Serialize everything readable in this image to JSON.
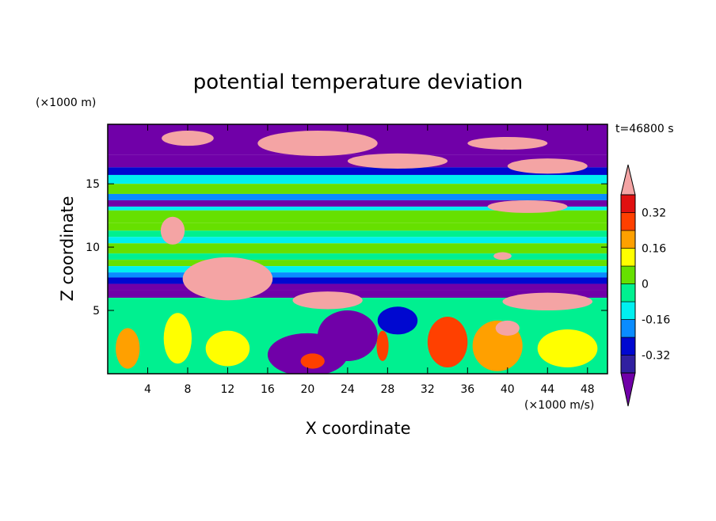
{
  "chart_data": {
    "type": "heatmap",
    "title": "potential temperature deviation",
    "xlabel": "X coordinate",
    "ylabel": "Z coordinate",
    "x_unit": "(×1000 m/s)",
    "y_unit": "(×1000 m)",
    "time_label": "t=46800 s",
    "xlim": [
      0,
      50
    ],
    "ylim": [
      0,
      19.7
    ],
    "x_ticks": [
      4,
      8,
      12,
      16,
      20,
      24,
      28,
      32,
      36,
      40,
      44,
      48
    ],
    "y_ticks": [
      5,
      10,
      15
    ],
    "colorbar": {
      "levels": [
        -0.4,
        -0.32,
        -0.24,
        -0.16,
        -0.08,
        0,
        0.08,
        0.16,
        0.24,
        0.32,
        0.4
      ],
      "labels": [
        "0.32",
        "0.16",
        "0",
        "-0.16",
        "-0.32"
      ],
      "label_values": [
        0.32,
        0.16,
        0,
        -0.16,
        -0.32
      ],
      "colors": [
        "#7000a8",
        "#3020a0",
        "#0008d0",
        "#0a8cff",
        "#00f0f0",
        "#00f090",
        "#66e000",
        "#ffff00",
        "#ffa000",
        "#ff4000",
        "#e01010",
        "#f4a4a4"
      ],
      "extend": "both"
    },
    "field_bands": [
      {
        "z": [
          19.7,
          17.3
        ],
        "value": -0.45
      },
      {
        "z": [
          17.3,
          16.3
        ],
        "value": -0.45
      },
      {
        "z": [
          16.3,
          15.7
        ],
        "value": -0.28
      },
      {
        "z": [
          15.7,
          15.0
        ],
        "value": -0.12
      },
      {
        "z": [
          15.0,
          14.2
        ],
        "value": 0.03
      },
      {
        "z": [
          14.2,
          13.7
        ],
        "value": -0.2
      },
      {
        "z": [
          13.7,
          13.2
        ],
        "value": -0.45
      },
      {
        "z": [
          13.2,
          12.9
        ],
        "value": -0.12
      },
      {
        "z": [
          12.9,
          11.9
        ],
        "value": 0.03
      },
      {
        "z": [
          11.9,
          11.3
        ],
        "value": 0.07
      },
      {
        "z": [
          11.3,
          10.8
        ],
        "value": -0.05
      },
      {
        "z": [
          10.8,
          10.3
        ],
        "value": -0.1
      },
      {
        "z": [
          10.3,
          9.5
        ],
        "value": 0.03
      },
      {
        "z": [
          9.5,
          9.0
        ],
        "value": -0.05
      },
      {
        "z": [
          9.0,
          8.5
        ],
        "value": 0.03
      },
      {
        "z": [
          8.5,
          8.0
        ],
        "value": -0.1
      },
      {
        "z": [
          8.0,
          7.6
        ],
        "value": -0.2
      },
      {
        "z": [
          7.6,
          7.1
        ],
        "value": -0.3
      },
      {
        "z": [
          7.1,
          6.6
        ],
        "value": -0.45
      },
      {
        "z": [
          6.6,
          6.0
        ],
        "value": -0.45
      },
      {
        "z": [
          6.0,
          0
        ],
        "value": -0.05
      }
    ],
    "field_blobs": [
      {
        "x": 8,
        "z": 18.6,
        "rx": 2.6,
        "rz": 0.6,
        "value": 0.45
      },
      {
        "x": 21,
        "z": 18.2,
        "rx": 6,
        "rz": 1.0,
        "value": 0.45
      },
      {
        "x": 29,
        "z": 16.8,
        "rx": 5,
        "rz": 0.6,
        "value": 0.45
      },
      {
        "x": 40,
        "z": 18.2,
        "rx": 4,
        "rz": 0.5,
        "value": 0.45
      },
      {
        "x": 44,
        "z": 16.4,
        "rx": 4,
        "rz": 0.6,
        "value": 0.45
      },
      {
        "x": 42,
        "z": 13.2,
        "rx": 4,
        "rz": 0.5,
        "value": 0.45
      },
      {
        "x": 6.5,
        "z": 11.3,
        "rx": 1.2,
        "rz": 1.1,
        "value": 0.45
      },
      {
        "x": 12,
        "z": 7.5,
        "rx": 4.5,
        "rz": 1.7,
        "value": 0.45
      },
      {
        "x": 22,
        "z": 5.8,
        "rx": 3.5,
        "rz": 0.7,
        "value": 0.45
      },
      {
        "x": 44,
        "z": 5.7,
        "rx": 4.5,
        "rz": 0.7,
        "value": 0.45
      },
      {
        "x": 39.5,
        "z": 9.3,
        "rx": 0.9,
        "rz": 0.3,
        "value": 0.45
      },
      {
        "x": 20,
        "z": 1.5,
        "rx": 4.0,
        "rz": 1.7,
        "value": -0.45
      },
      {
        "x": 24,
        "z": 3.0,
        "rx": 3.0,
        "rz": 2.0,
        "value": -0.45
      },
      {
        "x": 29,
        "z": 4.2,
        "rx": 2.0,
        "rz": 1.1,
        "value": -0.3
      },
      {
        "x": 2,
        "z": 2.0,
        "rx": 1.2,
        "rz": 1.6,
        "value": 0.2
      },
      {
        "x": 7,
        "z": 2.8,
        "rx": 1.4,
        "rz": 2.0,
        "value": 0.13
      },
      {
        "x": 12,
        "z": 2.0,
        "rx": 2.2,
        "rz": 1.4,
        "value": 0.1
      },
      {
        "x": 34,
        "z": 2.5,
        "rx": 2.0,
        "rz": 2.0,
        "value": 0.3
      },
      {
        "x": 39,
        "z": 2.2,
        "rx": 2.5,
        "rz": 2.0,
        "value": 0.22
      },
      {
        "x": 46,
        "z": 2.0,
        "rx": 3.0,
        "rz": 1.5,
        "value": 0.14
      },
      {
        "x": 40,
        "z": 3.6,
        "rx": 1.2,
        "rz": 0.6,
        "value": 0.45
      },
      {
        "x": 20.5,
        "z": 1.0,
        "rx": 1.2,
        "rz": 0.6,
        "value": 0.3
      },
      {
        "x": 27.5,
        "z": 2.2,
        "rx": 0.6,
        "rz": 1.2,
        "value": 0.3
      }
    ]
  }
}
